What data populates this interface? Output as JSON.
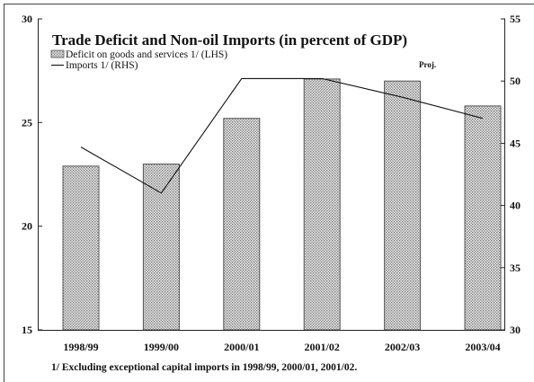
{
  "chart_data": {
    "type": "bar",
    "title": "Trade Deficit and Non-oil Imports (in percent of GDP)",
    "categories": [
      "1998/99",
      "1999/00",
      "2000/01",
      "2001/02",
      "2002/03",
      "2003/04"
    ],
    "series": [
      {
        "name": "Deficit on goods and services 1/ (LHS)",
        "type": "bar",
        "y_axis": "left",
        "values": [
          22.9,
          23.0,
          25.2,
          27.1,
          27.0,
          25.8
        ]
      },
      {
        "name": "Imports 1/ (RHS)",
        "type": "line",
        "y_axis": "right",
        "values": [
          44.7,
          41.0,
          50.2,
          50.2,
          48.7,
          47.0
        ]
      }
    ],
    "y_left": {
      "min": 15,
      "max": 30,
      "ticks": [
        15,
        20,
        25,
        30
      ]
    },
    "y_right": {
      "min": 30,
      "max": 55,
      "ticks": [
        30,
        35,
        40,
        45,
        50,
        55
      ]
    },
    "annotations": [
      {
        "text": "Proj."
      }
    ],
    "footnote": "1/ Excluding exceptional capital imports in 1998/99, 2000/01, 2001/02.",
    "legend_position": "top-left",
    "grid": false,
    "colors": {
      "bar_fill": "#e4e4e4",
      "bar_dots": "#7a7a7a",
      "bar_stroke": "#555555",
      "line": "#111111",
      "axis": "#222222",
      "frame": "#444444"
    }
  }
}
